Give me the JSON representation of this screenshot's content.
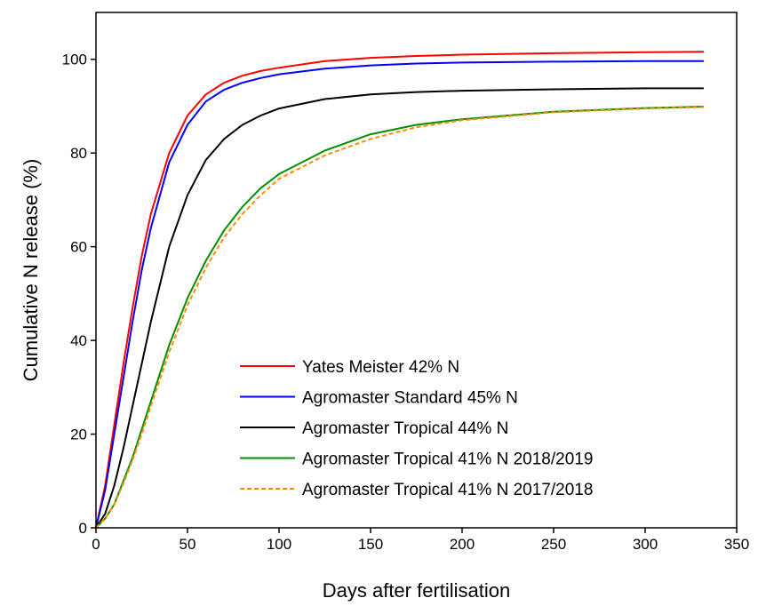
{
  "chart_data": {
    "type": "line",
    "title": "",
    "xlabel": "Days after fertilisation",
    "ylabel": "Cumulative N release (%)",
    "xlim": [
      0,
      350
    ],
    "ylim": [
      0,
      110
    ],
    "xticks": [
      0,
      50,
      100,
      150,
      200,
      250,
      300,
      350
    ],
    "yticks": [
      0,
      20,
      40,
      60,
      80,
      100
    ],
    "grid": false,
    "legend_position": "bottom-right",
    "series": [
      {
        "name": "Yates Meister 42% N",
        "color": "#ff0000",
        "dash": "solid",
        "x": [
          0,
          5,
          10,
          15,
          20,
          25,
          30,
          40,
          50,
          60,
          70,
          80,
          90,
          100,
          125,
          150,
          175,
          200,
          250,
          300,
          332
        ],
        "y": [
          0,
          9,
          22,
          35,
          47,
          58,
          67,
          80,
          88,
          92.5,
          95,
          96.5,
          97.5,
          98.2,
          99.6,
          100.3,
          100.7,
          101,
          101.3,
          101.5,
          101.6
        ]
      },
      {
        "name": "Agromaster Standard 45% N",
        "color": "#0000ff",
        "dash": "solid",
        "x": [
          0,
          5,
          10,
          15,
          20,
          25,
          30,
          40,
          50,
          60,
          70,
          80,
          90,
          100,
          125,
          150,
          175,
          200,
          250,
          300,
          332
        ],
        "y": [
          0,
          8,
          20,
          32,
          44,
          55,
          64,
          78,
          86,
          91,
          93.5,
          95,
          96,
          96.8,
          98,
          98.7,
          99.1,
          99.3,
          99.5,
          99.6,
          99.6
        ]
      },
      {
        "name": "Agromaster Tropical 44% N",
        "color": "#000000",
        "dash": "solid",
        "x": [
          0,
          5,
          10,
          15,
          20,
          25,
          30,
          40,
          50,
          60,
          70,
          80,
          90,
          100,
          125,
          150,
          175,
          200,
          250,
          300,
          332
        ],
        "y": [
          0,
          3,
          9,
          17,
          26,
          35,
          44,
          60,
          71,
          78.5,
          83,
          86,
          88,
          89.5,
          91.5,
          92.5,
          93,
          93.3,
          93.6,
          93.8,
          93.8
        ]
      },
      {
        "name": "Agromaster Tropical 41% N 2018/2019",
        "color": "#009000",
        "dash": "solid",
        "x": [
          0,
          5,
          10,
          15,
          20,
          25,
          30,
          40,
          50,
          60,
          70,
          80,
          90,
          100,
          125,
          150,
          175,
          200,
          250,
          300,
          332
        ],
        "y": [
          0,
          2,
          5,
          10,
          15,
          21,
          27,
          39,
          49,
          57,
          63.5,
          68.5,
          72.5,
          75.5,
          80.5,
          84,
          86,
          87.2,
          88.8,
          89.6,
          89.9
        ]
      },
      {
        "name": "Agromaster Tropical 41% N 2017/2018",
        "color": "#ff8c00",
        "dash": "dashed",
        "x": [
          0,
          5,
          10,
          15,
          20,
          25,
          30,
          40,
          50,
          60,
          70,
          80,
          90,
          100,
          125,
          150,
          175,
          200,
          250,
          300,
          332
        ],
        "y": [
          0,
          2,
          5,
          9.5,
          14.5,
          20,
          26,
          37.5,
          47.5,
          55.5,
          62,
          67,
          71,
          74.5,
          79.5,
          83,
          85.5,
          87,
          88.7,
          89.5,
          89.8
        ]
      }
    ]
  }
}
